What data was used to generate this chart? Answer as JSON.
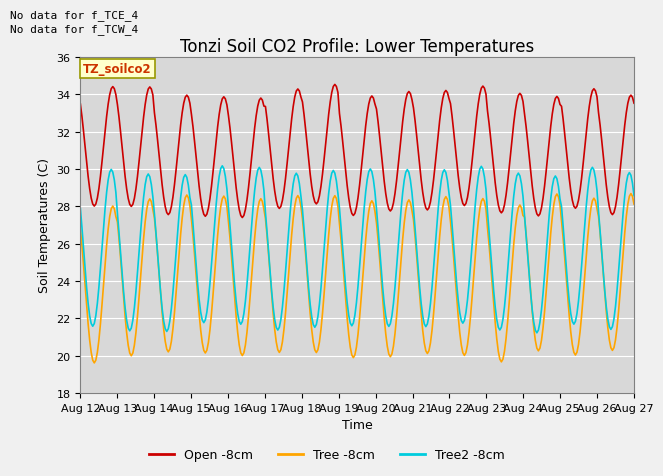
{
  "title": "Tonzi Soil CO2 Profile: Lower Temperatures",
  "ylabel": "Soil Temperatures (C)",
  "xlabel": "Time",
  "annotation_line1": "No data for f_TCE_4",
  "annotation_line2": "No data for f_TCW_4",
  "box_label": "TZ_soilco2",
  "ylim": [
    18,
    36
  ],
  "yticks": [
    18,
    20,
    22,
    24,
    26,
    28,
    30,
    32,
    34,
    36
  ],
  "xtick_labels": [
    "Aug 12",
    "Aug 13",
    "Aug 14",
    "Aug 15",
    "Aug 16",
    "Aug 17",
    "Aug 18",
    "Aug 19",
    "Aug 20",
    "Aug 21",
    "Aug 22",
    "Aug 23",
    "Aug 24",
    "Aug 25",
    "Aug 26",
    "Aug 27"
  ],
  "colors": {
    "open": "#cc0000",
    "tree": "#ffa500",
    "tree2": "#00ccdd"
  },
  "legend_labels": [
    "Open -8cm",
    "Tree -8cm",
    "Tree2 -8cm"
  ],
  "fig_bg": "#f0f0f0",
  "plot_bg": "#d8d8d8",
  "title_fontsize": 12,
  "label_fontsize": 9,
  "tick_fontsize": 8,
  "annot_fontsize": 8
}
